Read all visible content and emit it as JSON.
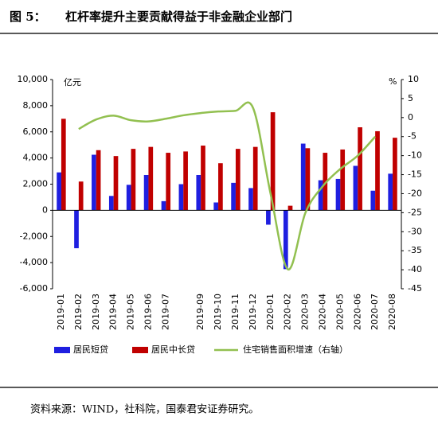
{
  "chart_data": {
    "type": "bar-line",
    "figure_label": "图 5：",
    "title": "杠杆率提升主要贡献得益于非金融企业部门",
    "source": "资料来源：WIND，社科院，国泰君安证券研究。",
    "y_unit": "亿元",
    "y2_unit": "%",
    "categories": [
      "2019-01",
      "2019-02",
      "2019-03",
      "2019-04",
      "2019-05",
      "2019-06",
      "2019-07",
      null,
      "2019-09",
      "2019-10",
      "2019-11",
      "2019-12",
      "2020-01",
      "2020-02",
      "2020-03",
      "2020-04",
      "2020-05",
      "2020-06",
      "2020-07",
      "2020-08"
    ],
    "series": [
      {
        "name": "居民短贷",
        "type": "bar",
        "color": "#1f1fe0",
        "values": [
          2900,
          -2900,
          4250,
          1100,
          1950,
          2700,
          700,
          2000,
          2700,
          600,
          2100,
          1700,
          -1100,
          -4500,
          5100,
          2300,
          2400,
          3400,
          1500,
          2800
        ]
      },
      {
        "name": "居民中长贷",
        "type": "bar",
        "color": "#c00000",
        "values": [
          7000,
          2200,
          4600,
          4150,
          4700,
          4850,
          4400,
          4500,
          4950,
          3600,
          4700,
          4850,
          7500,
          350,
          4750,
          4400,
          4650,
          6350,
          6050,
          5550
        ]
      },
      {
        "name": "住宅销售面积增速（右轴）",
        "type": "line",
        "axis": "y2",
        "color": "#92c050",
        "values": [
          null,
          -3,
          -0.5,
          0.5,
          -0.7,
          -1,
          -0.3,
          0.6,
          1.2,
          1.6,
          1.8,
          2.5,
          -20,
          -39.9,
          -25,
          -18,
          -13.5,
          -10,
          -5,
          null
        ]
      }
    ],
    "ylim": [
      -6000,
      10000
    ],
    "yticks": [
      {
        "value": -6000,
        "label": "-6,000"
      },
      {
        "value": -4000,
        "label": "-4,000"
      },
      {
        "value": -2000,
        "label": "-2,000"
      },
      0,
      {
        "value": 2000,
        "label": "2,000"
      },
      {
        "value": 4000,
        "label": "4,000"
      },
      {
        "value": 6000,
        "label": "6,000"
      },
      {
        "value": 8000,
        "label": "8,000"
      },
      {
        "value": 10000,
        "label": "10,000"
      }
    ],
    "y2lim": [
      -45,
      10
    ],
    "y2ticks": [
      -45,
      -40,
      -35,
      -30,
      -25,
      -20,
      -15,
      -10,
      -5,
      0,
      5,
      10
    ],
    "legend": "bottom"
  }
}
